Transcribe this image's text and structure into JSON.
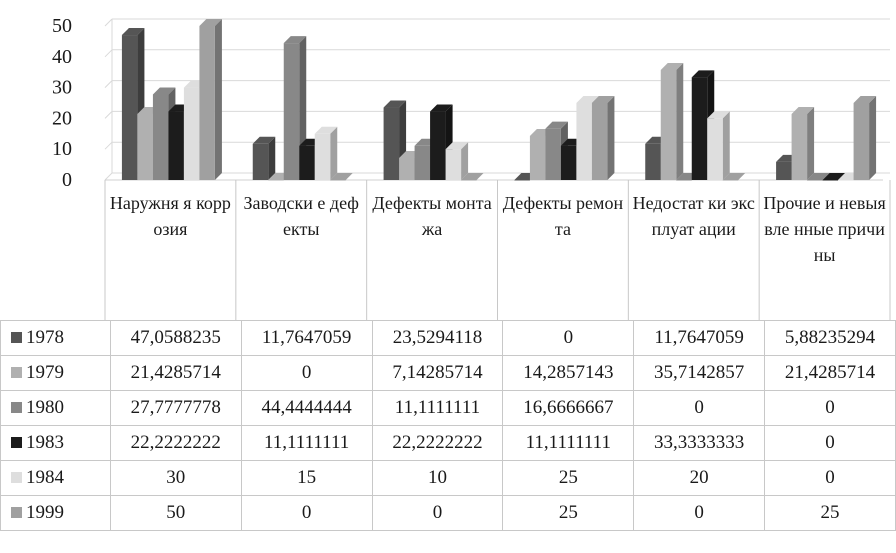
{
  "chart_data": {
    "type": "bar",
    "categories": [
      "Наружняя коррозия",
      "Заводские дефекты",
      "Дефекты монтажа",
      "Дефекты ремонта",
      "Недостатки эксплуатации",
      "Прочие и невыявленные причины"
    ],
    "category_labels": [
      "Наружня я коррозия",
      "Заводски е дефекты",
      "Дефекты монтажа",
      "Дефекты ремонта",
      "Недостат ки эксплуат ации",
      "Прочие и невыявле нные причины"
    ],
    "series": [
      {
        "name": "1978",
        "color": "#555555",
        "values": [
          47.0588235,
          11.7647059,
          23.5294118,
          0,
          11.7647059,
          5.88235294
        ],
        "labels": [
          "47,0588235",
          "11,7647059",
          "23,5294118",
          "0",
          "11,7647059",
          "5,88235294"
        ]
      },
      {
        "name": "1979",
        "color": "#b0b0b0",
        "values": [
          21.4285714,
          0,
          7.14285714,
          14.2857143,
          35.7142857,
          21.4285714
        ],
        "labels": [
          "21,4285714",
          "0",
          "7,14285714",
          "14,2857143",
          "35,7142857",
          "21,4285714"
        ]
      },
      {
        "name": "1980",
        "color": "#888888",
        "values": [
          27.7777778,
          44.4444444,
          11.1111111,
          16.6666667,
          0,
          0
        ],
        "labels": [
          "27,7777778",
          "44,4444444",
          "11,1111111",
          "16,6666667",
          "0",
          "0"
        ]
      },
      {
        "name": "1983",
        "color": "#1c1c1c",
        "values": [
          22.2222222,
          11.1111111,
          22.2222222,
          11.1111111,
          33.3333333,
          0
        ],
        "labels": [
          "22,2222222",
          "11,1111111",
          "22,2222222",
          "11,1111111",
          "33,3333333",
          "0"
        ]
      },
      {
        "name": "1984",
        "color": "#dedede",
        "values": [
          30,
          15,
          10,
          25,
          20,
          0
        ],
        "labels": [
          "30",
          "15",
          "10",
          "25",
          "20",
          "0"
        ]
      },
      {
        "name": "1999",
        "color": "#a0a0a0",
        "values": [
          50,
          0,
          0,
          25,
          0,
          25
        ],
        "labels": [
          "50",
          "0",
          "0",
          "25",
          "0",
          "25"
        ]
      }
    ],
    "yticks": [
      "0",
      "10",
      "20",
      "30",
      "40",
      "50"
    ],
    "ylim": [
      0,
      50
    ],
    "grid": true,
    "legend": "data-table",
    "title": "",
    "xlabel": "",
    "ylabel": ""
  }
}
